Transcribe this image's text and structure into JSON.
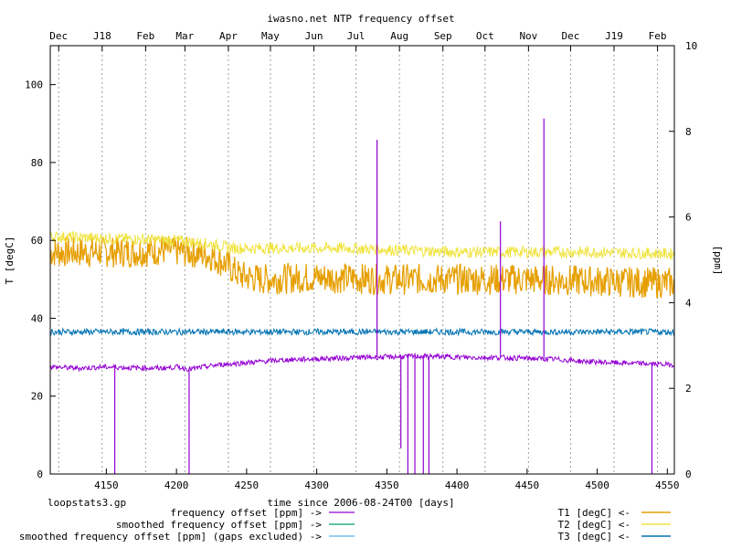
{
  "chart_data": {
    "type": "line",
    "title": "iwasno.net NTP frequency offset",
    "xlabel": "time since 2006-08-24T00 [days]",
    "ylabel_left": "T [degC]",
    "ylabel_right": "[ppm]",
    "xlim": [
      4110,
      4555
    ],
    "ylim_left": [
      0,
      110
    ],
    "ylim_right": [
      0,
      10
    ],
    "grid": "vertical dotted at month boundaries",
    "legend_position": "below plot, two columns",
    "footer_note": "loopstats3.gp",
    "x_ticks": [
      4150,
      4200,
      4250,
      4300,
      4350,
      4400,
      4450,
      4500,
      4550
    ],
    "y_left_ticks": [
      0,
      20,
      40,
      60,
      80,
      100
    ],
    "y_right_ticks": [
      0,
      2,
      4,
      6,
      8,
      10
    ],
    "month_axis": [
      {
        "label": "Dec",
        "x": 4116
      },
      {
        "label": "J18",
        "x": 4147
      },
      {
        "label": "Feb",
        "x": 4178
      },
      {
        "label": "Mar",
        "x": 4206
      },
      {
        "label": "Apr",
        "x": 4237
      },
      {
        "label": "May",
        "x": 4267
      },
      {
        "label": "Jun",
        "x": 4298
      },
      {
        "label": "Jul",
        "x": 4328
      },
      {
        "label": "Aug",
        "x": 4359
      },
      {
        "label": "Sep",
        "x": 4390
      },
      {
        "label": "Oct",
        "x": 4420
      },
      {
        "label": "Nov",
        "x": 4451
      },
      {
        "label": "Dec",
        "x": 4481
      },
      {
        "label": "J19",
        "x": 4512
      },
      {
        "label": "Feb",
        "x": 4543
      }
    ],
    "series": [
      {
        "name": "frequency offset [ppm] ->",
        "axis": "right",
        "color": "#9400d3",
        "x": [
          4110,
          4130,
          4150,
          4170,
          4190,
          4200,
          4210,
          4230,
          4250,
          4270,
          4290,
          4310,
          4330,
          4350,
          4370,
          4390,
          4410,
          4430,
          4450,
          4470,
          4490,
          4510,
          4530,
          4555
        ],
        "y": [
          2.5,
          2.47,
          2.5,
          2.48,
          2.47,
          2.5,
          2.45,
          2.55,
          2.6,
          2.65,
          2.68,
          2.7,
          2.72,
          2.73,
          2.75,
          2.74,
          2.72,
          2.72,
          2.7,
          2.68,
          2.63,
          2.6,
          2.58,
          2.55
        ],
        "spikes": [
          {
            "x": 4156,
            "y": 0
          },
          {
            "x": 4209,
            "y": 0
          },
          {
            "x": 4343,
            "y": 7.8
          },
          {
            "x": 4360,
            "y": 0.6
          },
          {
            "x": 4365,
            "y": 0
          },
          {
            "x": 4370,
            "y": 0
          },
          {
            "x": 4376,
            "y": 0
          },
          {
            "x": 4380,
            "y": 0
          },
          {
            "x": 4431,
            "y": 5.9
          },
          {
            "x": 4462,
            "y": 8.3
          },
          {
            "x": 4539,
            "y": 0
          }
        ]
      },
      {
        "name": "smoothed frequency offset [ppm] ->",
        "axis": "right",
        "color": "#009e73",
        "x": [],
        "y": []
      },
      {
        "name": "smoothed frequency offset [ppm] (gaps excluded) ->",
        "axis": "right",
        "color": "#56b4e9",
        "x": [],
        "y": []
      },
      {
        "name": "T1 [degC] <-",
        "axis": "left",
        "color": "#e69f00",
        "x": [
          4110,
          4130,
          4150,
          4170,
          4190,
          4210,
          4225,
          4235,
          4245,
          4260,
          4300,
          4350,
          4400,
          4450,
          4500,
          4555
        ],
        "y": [
          57,
          57,
          57,
          57,
          57.5,
          57,
          56,
          54,
          51,
          50,
          50.5,
          50,
          50,
          50,
          49.5,
          49
        ]
      },
      {
        "name": "T2 [degC] <-",
        "axis": "left",
        "color": "#f0e442",
        "x": [
          4110,
          4150,
          4200,
          4225,
          4240,
          4280,
          4320,
          4360,
          4400,
          4450,
          4500,
          4555
        ],
        "y": [
          61,
          60.5,
          60,
          59,
          58,
          58,
          58,
          57.5,
          57,
          57,
          57,
          56.5
        ]
      },
      {
        "name": "T3 [degC] <-",
        "axis": "left",
        "color": "#0072b2",
        "x": [
          4110,
          4150,
          4200,
          4250,
          4300,
          4350,
          4400,
          4450,
          4500,
          4555
        ],
        "y": [
          36.5,
          36.5,
          36.5,
          36.5,
          36.5,
          36.5,
          36.5,
          36.5,
          36.5,
          36.5
        ]
      }
    ]
  }
}
